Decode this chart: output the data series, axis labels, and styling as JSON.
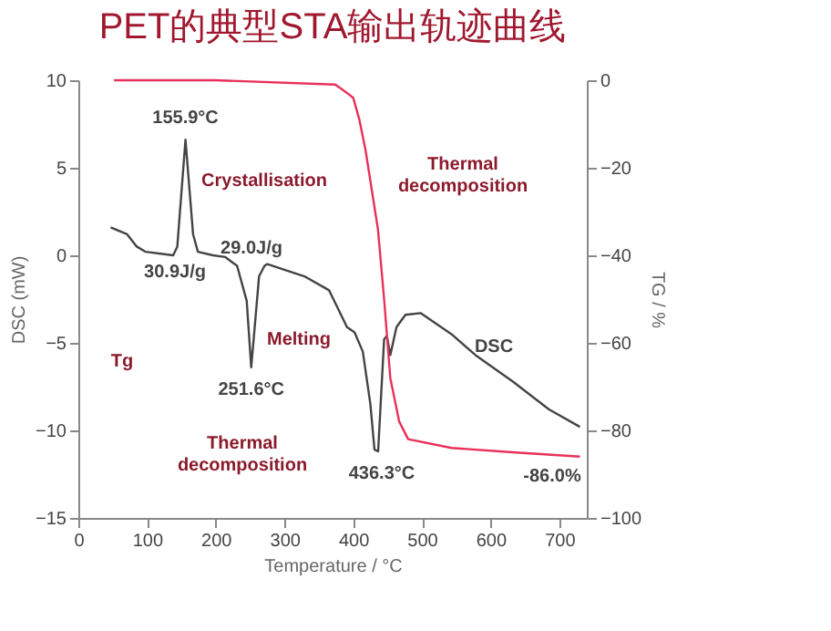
{
  "chart_data": {
    "type": "line",
    "title": "PET的典型STA输出轨迹曲线",
    "xlabel": "Temperature / °C",
    "ylabel": "DSC (mW)",
    "y2label": "TG / %",
    "xlim": [
      0,
      740
    ],
    "xticks": [
      0,
      100,
      200,
      300,
      400,
      500,
      600,
      700
    ],
    "ylim": [
      -15,
      10
    ],
    "yticks": [
      -15,
      -10,
      -5,
      0,
      5,
      10
    ],
    "y2lim": [
      -100,
      0
    ],
    "y2ticks": [
      -100,
      -80,
      -60,
      -40,
      -20,
      0
    ],
    "grid": false,
    "legend": false,
    "marker": "none",
    "line_style": "solid",
    "series": [
      {
        "color": "#444444",
        "x": [
          47,
          71,
          85,
          98,
          138,
          144,
          155.9,
          167,
          174,
          196,
          214,
          231,
          245,
          251.6,
          263,
          271,
          275,
          329,
          365,
          391,
          402,
          414,
          425,
          431,
          436.3,
          445,
          449,
          454,
          463,
          476,
          498,
          543,
          578,
          632,
          685,
          730
        ],
        "values": [
          1.6,
          1.2,
          0.5,
          0.2,
          0,
          0.5,
          6.6,
          1.2,
          0.2,
          0,
          -0.1,
          -0.6,
          -2.6,
          -6.4,
          -1.2,
          -0.6,
          -0.5,
          -1.2,
          -2,
          -4.1,
          -4.4,
          -5.5,
          -8.5,
          -11.1,
          -11.2,
          -4.8,
          -4.6,
          -5.7,
          -4.1,
          -3.4,
          -3.3,
          -4.5,
          -5.7,
          -7.2,
          -8.8,
          -9.8
        ]
      },
      {
        "color": "#e8305a",
        "axis": "y2",
        "x": [
          52,
          200,
          374,
          392,
          400,
          409,
          418,
          436,
          445,
          454,
          467,
          480,
          543,
          632,
          730
        ],
        "values": [
          0,
          0,
          -1,
          -3,
          -4,
          -9,
          -16,
          -34,
          -50,
          -68,
          -78,
          -82,
          -84,
          -85,
          -86
        ]
      }
    ],
    "annotations": [
      {
        "text": "155.9°C",
        "x": 155.9,
        "y": 6.6
      },
      {
        "text": "251.6°C",
        "x": 251.6,
        "y": -6.4
      },
      {
        "text": "436.3°C",
        "x": 436.3,
        "y": -11.2
      },
      "Crystallisation",
      "29.0J/g",
      "30.9J/g",
      "Melting",
      "Thermal\ndecomposition",
      "DSC",
      "-86.0%",
      "Thermal\ndecomposition",
      "Tg"
    ]
  }
}
